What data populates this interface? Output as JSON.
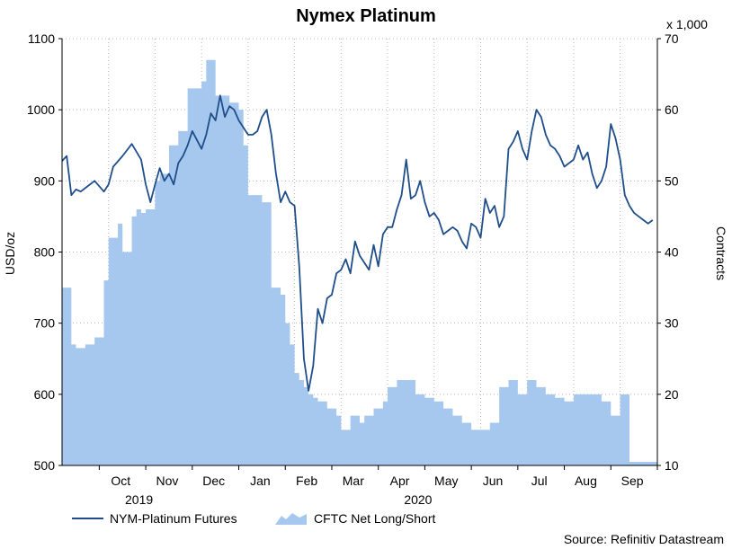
{
  "chart_data": {
    "type": "line",
    "title": "Nymex Platinum",
    "ylabel": "USD/oz",
    "y2label": "Contracts",
    "y2_multiplier": "x 1,000",
    "ylim": [
      500,
      1100
    ],
    "y2lim": [
      10,
      70
    ],
    "yticks": [
      500,
      600,
      700,
      800,
      900,
      1000,
      1100
    ],
    "y2ticks": [
      10,
      20,
      30,
      40,
      50,
      60,
      70
    ],
    "xlim": [
      0,
      12.8
    ],
    "month_labels": [
      "Oct",
      "Nov",
      "Dec",
      "Jan",
      "Feb",
      "Mar",
      "Apr",
      "May",
      "Jun",
      "Jul",
      "Aug",
      "Sep"
    ],
    "year_labels": [
      {
        "label": "2019",
        "x": 1.5
      },
      {
        "label": "2020",
        "x": 7.5
      }
    ],
    "grid": true,
    "series": [
      {
        "name": "NYM-Platinum Futures",
        "type": "line",
        "axis": "left",
        "color": "#1f4e8a",
        "x": [
          0.0,
          0.1,
          0.2,
          0.3,
          0.4,
          0.5,
          0.7,
          0.9,
          1.0,
          1.1,
          1.3,
          1.5,
          1.7,
          1.8,
          1.9,
          2.0,
          2.1,
          2.2,
          2.3,
          2.4,
          2.5,
          2.6,
          2.7,
          2.8,
          3.0,
          3.1,
          3.2,
          3.3,
          3.4,
          3.5,
          3.6,
          3.7,
          3.8,
          3.9,
          4.0,
          4.1,
          4.2,
          4.3,
          4.4,
          4.5,
          4.6,
          4.7,
          4.8,
          4.9,
          5.0,
          5.1,
          5.2,
          5.3,
          5.4,
          5.5,
          5.6,
          5.7,
          5.8,
          5.9,
          6.0,
          6.1,
          6.2,
          6.3,
          6.4,
          6.5,
          6.6,
          6.7,
          6.8,
          6.9,
          7.0,
          7.1,
          7.2,
          7.3,
          7.4,
          7.5,
          7.6,
          7.7,
          7.8,
          7.9,
          8.0,
          8.1,
          8.2,
          8.3,
          8.4,
          8.5,
          8.6,
          8.7,
          8.8,
          8.9,
          9.0,
          9.1,
          9.2,
          9.3,
          9.4,
          9.5,
          9.6,
          9.7,
          9.8,
          9.9,
          10.0,
          10.1,
          10.2,
          10.3,
          10.4,
          10.5,
          10.6,
          10.7,
          10.8,
          10.9,
          11.0,
          11.1,
          11.2,
          11.3,
          11.4,
          11.5,
          11.6,
          11.7,
          11.8,
          11.9,
          12.0,
          12.1,
          12.2,
          12.3,
          12.4,
          12.5,
          12.6,
          12.7
        ],
        "values": [
          928,
          935,
          880,
          888,
          885,
          890,
          900,
          885,
          895,
          920,
          935,
          952,
          930,
          895,
          870,
          895,
          918,
          900,
          910,
          895,
          925,
          935,
          950,
          970,
          945,
          965,
          995,
          985,
          1020,
          990,
          1005,
          1000,
          985,
          975,
          965,
          965,
          970,
          990,
          1000,
          965,
          910,
          870,
          885,
          870,
          865,
          780,
          650,
          605,
          640,
          720,
          700,
          735,
          740,
          770,
          775,
          790,
          770,
          815,
          795,
          785,
          775,
          810,
          780,
          825,
          835,
          835,
          860,
          880,
          930,
          875,
          880,
          900,
          870,
          850,
          855,
          845,
          825,
          830,
          835,
          830,
          815,
          805,
          840,
          835,
          820,
          875,
          855,
          865,
          835,
          850,
          945,
          955,
          970,
          945,
          930,
          970,
          1000,
          990,
          965,
          950,
          945,
          935,
          920,
          925,
          930,
          950,
          930,
          940,
          910,
          890,
          900,
          920,
          980,
          960,
          930,
          880,
          865,
          855,
          850,
          845,
          840,
          845
        ]
      },
      {
        "name": "CFTC Net Long/Short",
        "type": "area",
        "axis": "right",
        "color": "#a6c8ef",
        "x": [
          0.0,
          0.2,
          0.3,
          0.5,
          0.7,
          0.9,
          1.0,
          1.2,
          1.3,
          1.5,
          1.6,
          1.7,
          1.8,
          2.0,
          2.1,
          2.3,
          2.5,
          2.7,
          2.8,
          3.0,
          3.1,
          3.3,
          3.5,
          3.6,
          3.8,
          3.9,
          4.0,
          4.2,
          4.3,
          4.5,
          4.7,
          4.8,
          4.9,
          5.0,
          5.1,
          5.2,
          5.3,
          5.4,
          5.5,
          5.7,
          5.9,
          6.0,
          6.2,
          6.4,
          6.5,
          6.7,
          6.9,
          7.0,
          7.2,
          7.4,
          7.6,
          7.8,
          8.0,
          8.2,
          8.4,
          8.6,
          8.8,
          9.0,
          9.2,
          9.4,
          9.6,
          9.8,
          10.0,
          10.2,
          10.4,
          10.6,
          10.8,
          11.0,
          11.2,
          11.4,
          11.6,
          11.8,
          12.0,
          12.2,
          12.4,
          12.6,
          12.8
        ],
        "values": [
          35,
          27,
          26.5,
          27,
          28,
          36,
          42,
          44,
          40,
          45,
          46,
          45.5,
          46,
          50,
          51,
          55,
          57,
          63,
          63,
          64,
          67,
          62,
          62,
          61,
          60,
          55,
          48,
          48,
          47,
          35,
          34,
          30,
          27,
          23,
          22,
          21,
          20,
          19.5,
          19,
          18,
          17,
          15,
          17,
          16,
          17,
          18,
          19,
          21,
          22,
          22,
          20,
          19.5,
          19,
          18,
          17,
          16,
          15,
          15,
          16,
          21,
          22,
          20,
          22,
          21,
          20,
          19.5,
          19,
          20,
          20,
          20,
          19,
          17,
          20,
          10.5,
          10.5,
          10.5,
          10.5
        ]
      }
    ],
    "source": "Source: Refinitiv Datastream"
  }
}
